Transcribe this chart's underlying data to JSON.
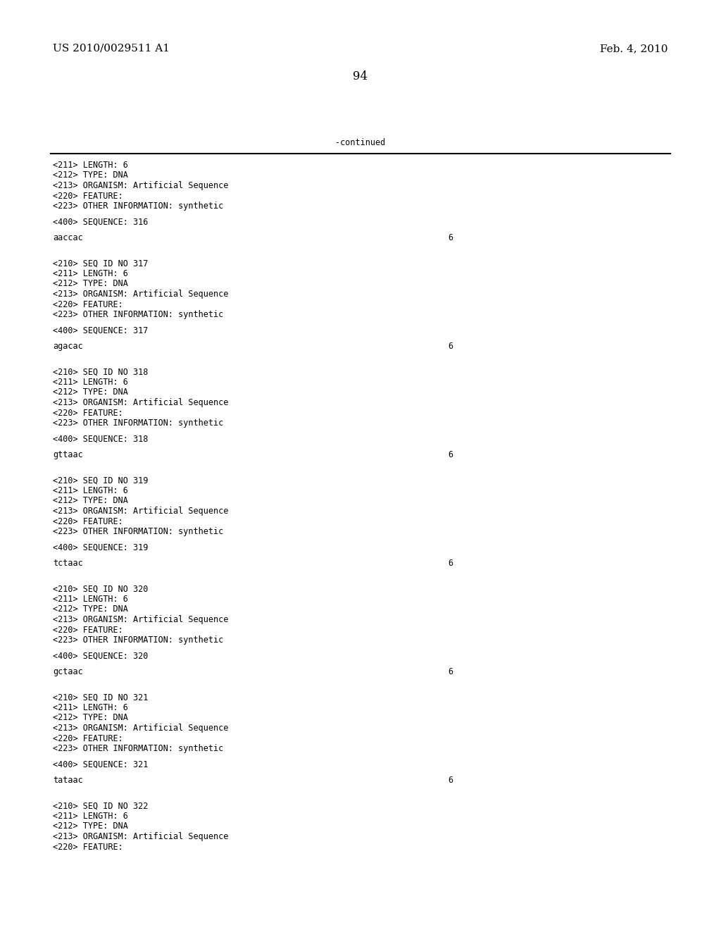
{
  "background_color": "#ffffff",
  "header_left": "US 2010/0029511 A1",
  "header_right": "Feb. 4, 2010",
  "page_number": "94",
  "continued_text": "-continued",
  "content_blocks": [
    {
      "type": "metadata_nostart",
      "lines": [
        "<211> LENGTH: 6",
        "<212> TYPE: DNA",
        "<213> ORGANISM: Artificial Sequence",
        "<220> FEATURE:",
        "<223> OTHER INFORMATION: synthetic"
      ]
    },
    {
      "type": "sequence_label",
      "label": "<400> SEQUENCE: 316"
    },
    {
      "type": "sequence",
      "seq": "aaccac",
      "num": "6"
    },
    {
      "type": "entry",
      "start_line": "<210> SEQ ID NO 317",
      "lines": [
        "<211> LENGTH: 6",
        "<212> TYPE: DNA",
        "<213> ORGANISM: Artificial Sequence",
        "<220> FEATURE:",
        "<223> OTHER INFORMATION: synthetic"
      ],
      "seq_label": "<400> SEQUENCE: 317",
      "seq": "agacac",
      "num": "6"
    },
    {
      "type": "entry",
      "start_line": "<210> SEQ ID NO 318",
      "lines": [
        "<211> LENGTH: 6",
        "<212> TYPE: DNA",
        "<213> ORGANISM: Artificial Sequence",
        "<220> FEATURE:",
        "<223> OTHER INFORMATION: synthetic"
      ],
      "seq_label": "<400> SEQUENCE: 318",
      "seq": "gttaac",
      "num": "6"
    },
    {
      "type": "entry",
      "start_line": "<210> SEQ ID NO 319",
      "lines": [
        "<211> LENGTH: 6",
        "<212> TYPE: DNA",
        "<213> ORGANISM: Artificial Sequence",
        "<220> FEATURE:",
        "<223> OTHER INFORMATION: synthetic"
      ],
      "seq_label": "<400> SEQUENCE: 319",
      "seq": "tctaac",
      "num": "6"
    },
    {
      "type": "entry",
      "start_line": "<210> SEQ ID NO 320",
      "lines": [
        "<211> LENGTH: 6",
        "<212> TYPE: DNA",
        "<213> ORGANISM: Artificial Sequence",
        "<220> FEATURE:",
        "<223> OTHER INFORMATION: synthetic"
      ],
      "seq_label": "<400> SEQUENCE: 320",
      "seq": "gctaac",
      "num": "6"
    },
    {
      "type": "entry",
      "start_line": "<210> SEQ ID NO 321",
      "lines": [
        "<211> LENGTH: 6",
        "<212> TYPE: DNA",
        "<213> ORGANISM: Artificial Sequence",
        "<220> FEATURE:",
        "<223> OTHER INFORMATION: synthetic"
      ],
      "seq_label": "<400> SEQUENCE: 321",
      "seq": "tataac",
      "num": "6"
    },
    {
      "type": "entry_partial",
      "start_line": "<210> SEQ ID NO 322",
      "lines": [
        "<211> LENGTH: 6",
        "<212> TYPE: DNA",
        "<213> ORGANISM: Artificial Sequence",
        "<220> FEATURE:"
      ]
    }
  ]
}
